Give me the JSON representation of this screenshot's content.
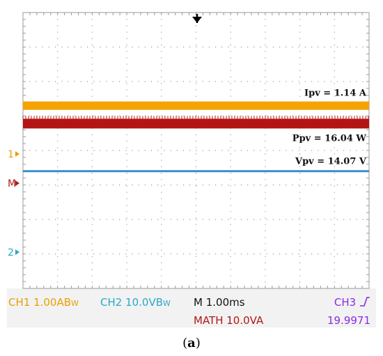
{
  "chart_data": {
    "type": "line",
    "time_scale": "M 1.00ms",
    "series": [
      {
        "name": "Ipv = 1.14 A",
        "channel": "1",
        "color": "#f5a300",
        "level_div": 1.3,
        "values": [
          1.14,
          1.14
        ]
      },
      {
        "name": "Ppv = 16.04 W",
        "channel": "MATH",
        "color": "#b31414",
        "level_div": 0.8,
        "values": [
          16.04,
          16.04
        ]
      },
      {
        "name": "Vpv = 14.07 V",
        "channel": "2",
        "color": "#3a8fc8",
        "level_div": -0.6,
        "values": [
          14.07,
          14.07
        ]
      }
    ],
    "markers": [
      {
        "label": "1",
        "color": "#e8a000",
        "level_div": -0.1
      },
      {
        "label": "M",
        "color": "#b01818",
        "level_div": -0.95
      },
      {
        "label": "2",
        "color": "#2aa8c8",
        "level_div": -2.95
      }
    ],
    "grid": true,
    "divisions": {
      "x": 10,
      "y": 8
    }
  },
  "status": {
    "ch1": "CH1  1.00AB",
    "ch1_sub": "W",
    "ch2": "CH2  10.0VB",
    "ch2_sub": "W",
    "time": "M 1.00ms",
    "ch3": "CH3",
    "ch3_icon": "rising-edge-icon",
    "math": "MATH 10.0VA",
    "trigger": "19.9971"
  },
  "caption": {
    "label": "a"
  },
  "colors": {
    "grid": "#9a9a9a",
    "background": "#ffffff",
    "status_bg": "#f2f2f2"
  }
}
